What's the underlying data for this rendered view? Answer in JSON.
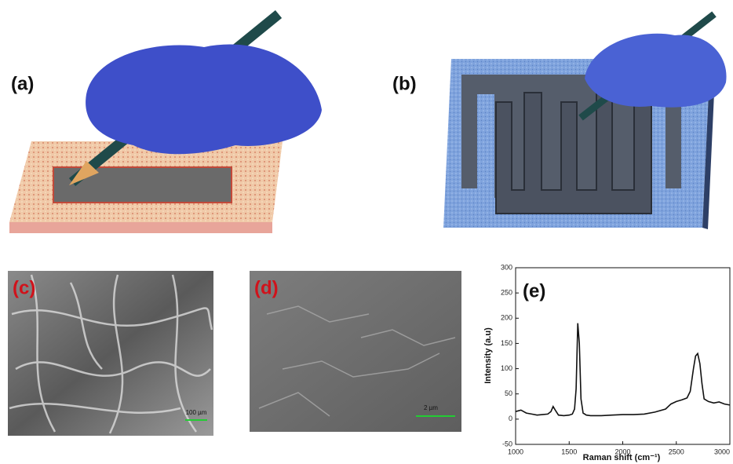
{
  "panels": [
    {
      "label": "(a)"
    },
    {
      "label": "(b)"
    },
    {
      "label": "(c)",
      "scale_bar": "100 µm"
    },
    {
      "label": "(d)",
      "scale_bar": "2 µm"
    }
  ],
  "chart_data": {
    "type": "line",
    "annotation": "(e)",
    "x_label": "Raman shift (cm⁻¹)",
    "y_label": "Intensity (a.u)",
    "x": [
      1000,
      1050,
      1100,
      1150,
      1200,
      1250,
      1300,
      1330,
      1350,
      1370,
      1400,
      1450,
      1500,
      1530,
      1550,
      1565,
      1580,
      1595,
      1610,
      1630,
      1660,
      1700,
      1800,
      1900,
      2000,
      2100,
      2200,
      2300,
      2400,
      2450,
      2500,
      2550,
      2600,
      2630,
      2660,
      2680,
      2700,
      2720,
      2740,
      2760,
      2800,
      2850,
      2900,
      2950,
      3000
    ],
    "series": [
      {
        "color": "#111111",
        "values": [
          15,
          18,
          12,
          10,
          8,
          9,
          10,
          15,
          25,
          18,
          8,
          7,
          8,
          10,
          20,
          60,
          190,
          150,
          40,
          12,
          8,
          7,
          7,
          8,
          9,
          9,
          10,
          14,
          20,
          30,
          35,
          38,
          42,
          55,
          100,
          125,
          130,
          110,
          70,
          40,
          35,
          32,
          34,
          30,
          28
        ]
      }
    ],
    "xlim": [
      1000,
      3000
    ],
    "xticks": [
      1000,
      1500,
      2000,
      2500,
      3000
    ],
    "ylim": [
      -50,
      300
    ],
    "yticks": [
      -50,
      0,
      50,
      100,
      150,
      200,
      250,
      300
    ]
  }
}
